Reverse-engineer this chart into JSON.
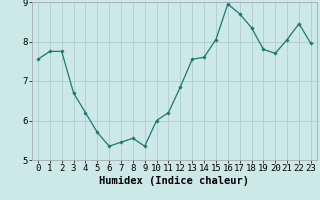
{
  "x": [
    0,
    1,
    2,
    3,
    4,
    5,
    6,
    7,
    8,
    9,
    10,
    11,
    12,
    13,
    14,
    15,
    16,
    17,
    18,
    19,
    20,
    21,
    22,
    23
  ],
  "y": [
    7.55,
    7.75,
    7.75,
    6.7,
    6.2,
    5.7,
    5.35,
    5.45,
    5.55,
    5.35,
    6.0,
    6.2,
    6.85,
    7.55,
    7.6,
    8.05,
    8.95,
    8.7,
    8.35,
    7.8,
    7.7,
    8.05,
    8.45,
    7.95
  ],
  "line_color": "#1a7a6e",
  "marker": "D",
  "marker_size": 1.8,
  "linewidth": 0.9,
  "bg_color": "#cce8e8",
  "grid_color": "#b0cccc",
  "xlabel": "Humidex (Indice chaleur)",
  "ylim": [
    5,
    9
  ],
  "xlim": [
    -0.5,
    23.5
  ],
  "yticks": [
    5,
    6,
    7,
    8,
    9
  ],
  "xticks": [
    0,
    1,
    2,
    3,
    4,
    5,
    6,
    7,
    8,
    9,
    10,
    11,
    12,
    13,
    14,
    15,
    16,
    17,
    18,
    19,
    20,
    21,
    22,
    23
  ],
  "xlabel_fontsize": 7.5,
  "tick_fontsize": 6.5
}
